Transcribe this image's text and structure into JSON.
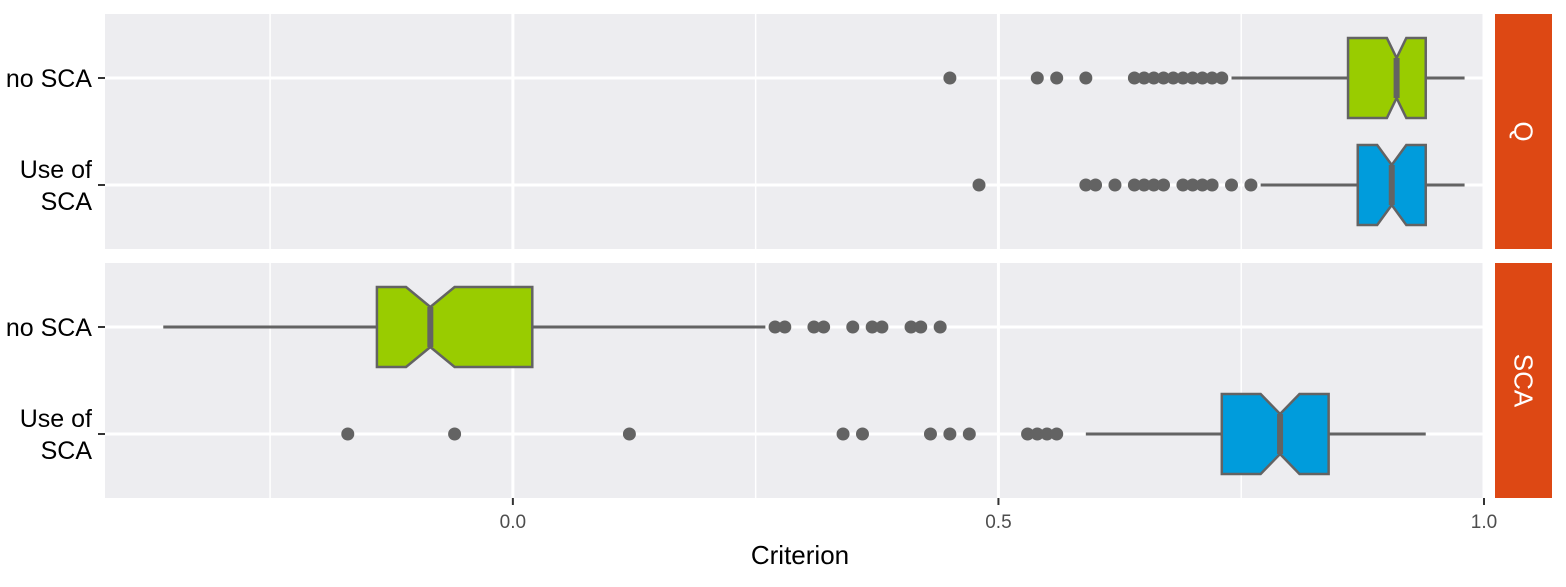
{
  "chart_data": {
    "type": "boxplot",
    "orientation": "horizontal",
    "notched": true,
    "xlabel": "Criterion",
    "xlim": [
      -0.42,
      1.0
    ],
    "x_ticks": [
      0.0,
      0.5,
      1.0
    ],
    "x_tick_labels": [
      "0.0",
      "0.5",
      "1.0"
    ],
    "x_minor_ticks": [
      -0.25,
      0.25,
      0.75
    ],
    "categories": [
      "no SCA",
      "Use of SCA"
    ],
    "category_labels": [
      [
        "no SCA"
      ],
      [
        "Use of",
        "SCA"
      ]
    ],
    "colors": {
      "no SCA": "#99cc00",
      "Use of SCA": "#009cdc",
      "strip": "#dd4814"
    },
    "panels": [
      {
        "name": "Q",
        "boxes": [
          {
            "category": "no SCA",
            "whisker_low": 0.74,
            "q1": 0.86,
            "notch_low": 0.9,
            "median": 0.91,
            "notch_high": 0.92,
            "q3": 0.94,
            "whisker_high": 0.98,
            "outliers": [
              0.45,
              0.54,
              0.56,
              0.59,
              0.64,
              0.65,
              0.66,
              0.67,
              0.68,
              0.69,
              0.7,
              0.71,
              0.72,
              0.73
            ]
          },
          {
            "category": "Use of SCA",
            "whisker_low": 0.77,
            "q1": 0.87,
            "notch_low": 0.89,
            "median": 0.905,
            "notch_high": 0.92,
            "q3": 0.94,
            "whisker_high": 0.98,
            "outliers": [
              0.48,
              0.59,
              0.6,
              0.62,
              0.64,
              0.65,
              0.66,
              0.67,
              0.69,
              0.7,
              0.71,
              0.72,
              0.74,
              0.76
            ]
          }
        ]
      },
      {
        "name": "SCA",
        "boxes": [
          {
            "category": "no SCA",
            "whisker_low": -0.36,
            "q1": -0.14,
            "notch_low": -0.11,
            "median": -0.085,
            "notch_high": -0.06,
            "q3": 0.02,
            "whisker_high": 0.26,
            "outliers": [
              0.27,
              0.28,
              0.31,
              0.32,
              0.35,
              0.37,
              0.38,
              0.41,
              0.42,
              0.44
            ]
          },
          {
            "category": "Use of SCA",
            "whisker_low": 0.59,
            "q1": 0.73,
            "notch_low": 0.77,
            "median": 0.79,
            "notch_high": 0.81,
            "q3": 0.84,
            "whisker_high": 0.94,
            "outliers": [
              -0.17,
              -0.06,
              0.12,
              0.34,
              0.36,
              0.43,
              0.45,
              0.47,
              0.53,
              0.54,
              0.55,
              0.56
            ]
          }
        ]
      }
    ]
  }
}
